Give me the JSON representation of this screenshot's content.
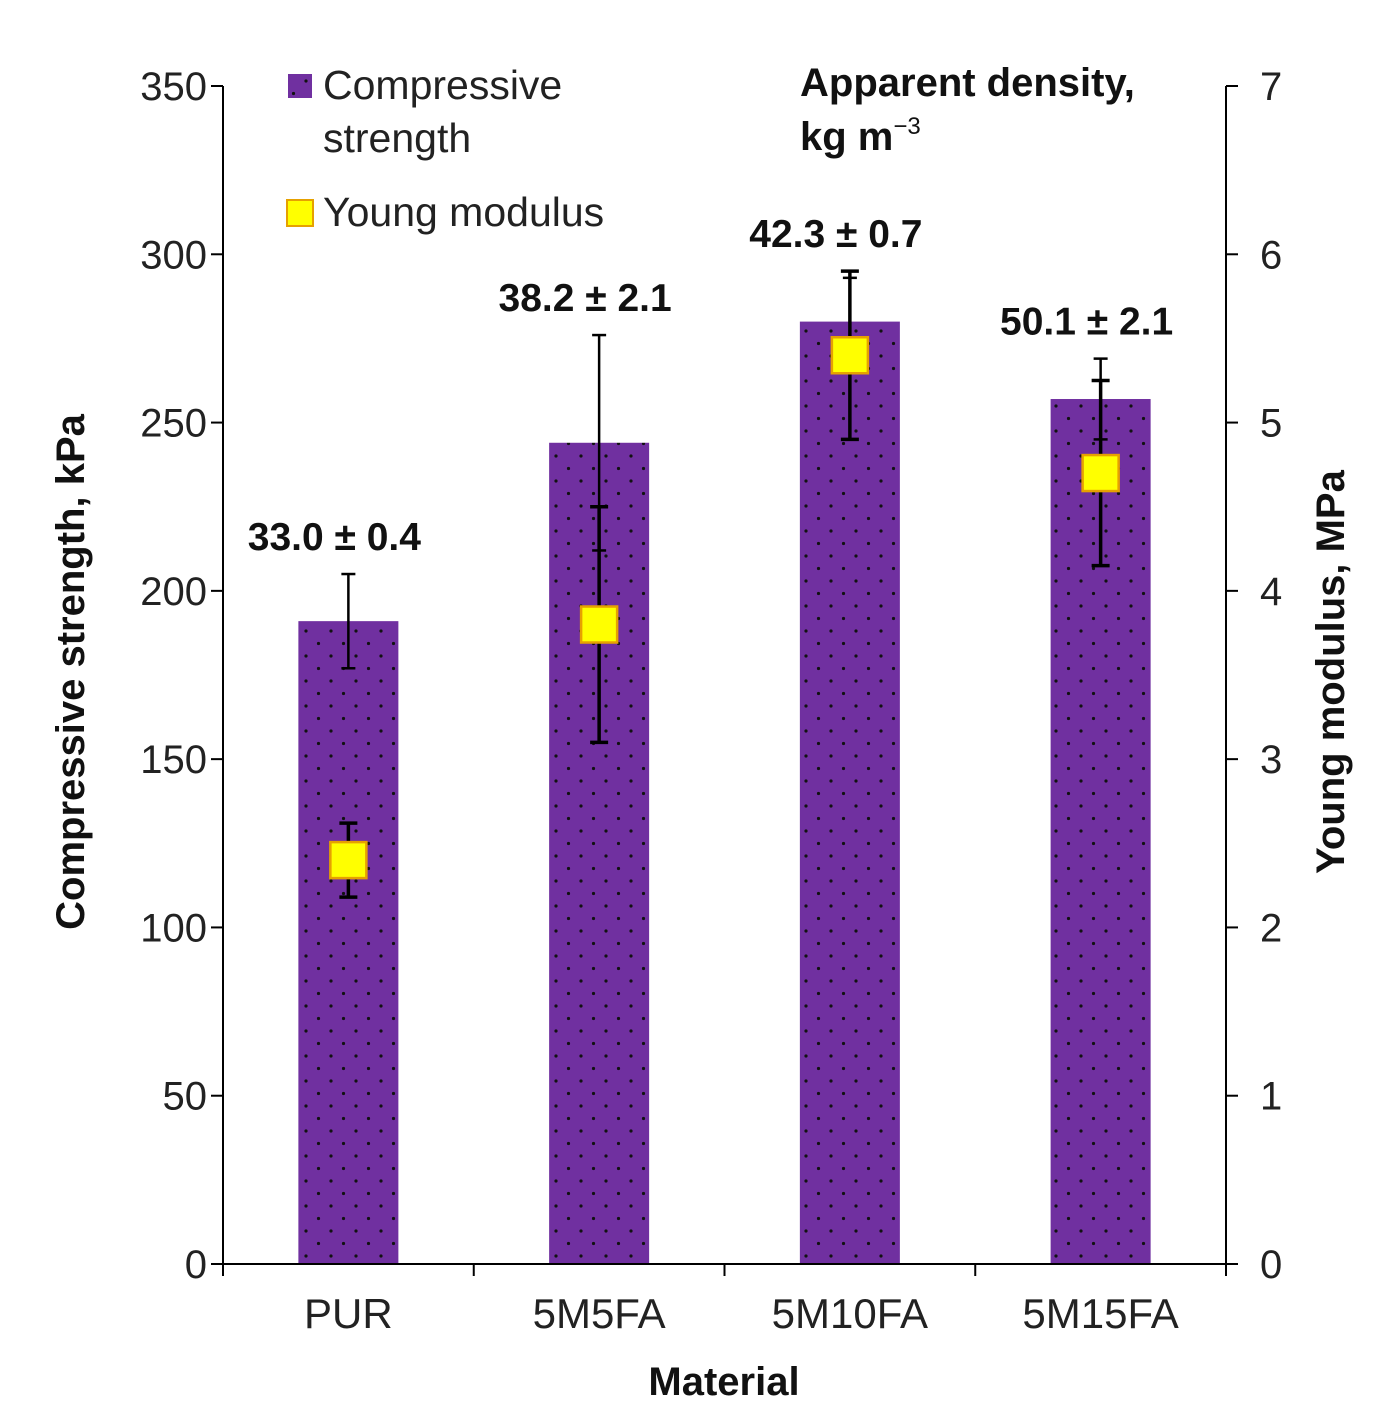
{
  "chart_data": {
    "type": "bar",
    "xlabel": "Material",
    "ylabel": "Compressive strength, kPa",
    "y2label": "Young modulus, MPa",
    "ylim": [
      0,
      350
    ],
    "y2lim": [
      0,
      7
    ],
    "yticks": [
      0,
      50,
      100,
      150,
      200,
      250,
      300,
      350
    ],
    "y2ticks": [
      0,
      1,
      2,
      3,
      4,
      5,
      6,
      7
    ],
    "categories": [
      "PUR",
      "5M5FA",
      "5M10FA",
      "5M15FA"
    ],
    "series": [
      {
        "name": "Compressive strength",
        "type": "bar",
        "axis": "left",
        "values": [
          191,
          244,
          280,
          257
        ],
        "error": [
          14,
          32,
          13,
          12
        ]
      },
      {
        "name": "Young modulus",
        "type": "scatter",
        "axis": "right",
        "values": [
          2.4,
          3.8,
          5.4,
          4.7
        ],
        "error": [
          0.22,
          0.7,
          0.5,
          0.55
        ]
      }
    ],
    "density_labels": [
      "33.0 ± 0.4",
      "38.2 ± 2.1",
      "42.3 ± 0.7",
      "50.1 ± 2.1"
    ],
    "density_title_line1": "Apparent density,",
    "density_title_line2": "kg m",
    "density_title_sup": "−3",
    "legend": {
      "position": "top-left",
      "entries": [
        "Compressive",
        "strength",
        "Young modulus"
      ]
    },
    "grid": false,
    "colors": {
      "bar": "#7030A0",
      "bar_dots": "#111111",
      "marker_fill": "#FFFF00",
      "marker_edge": "#E6A100",
      "axis": "#000000"
    }
  }
}
